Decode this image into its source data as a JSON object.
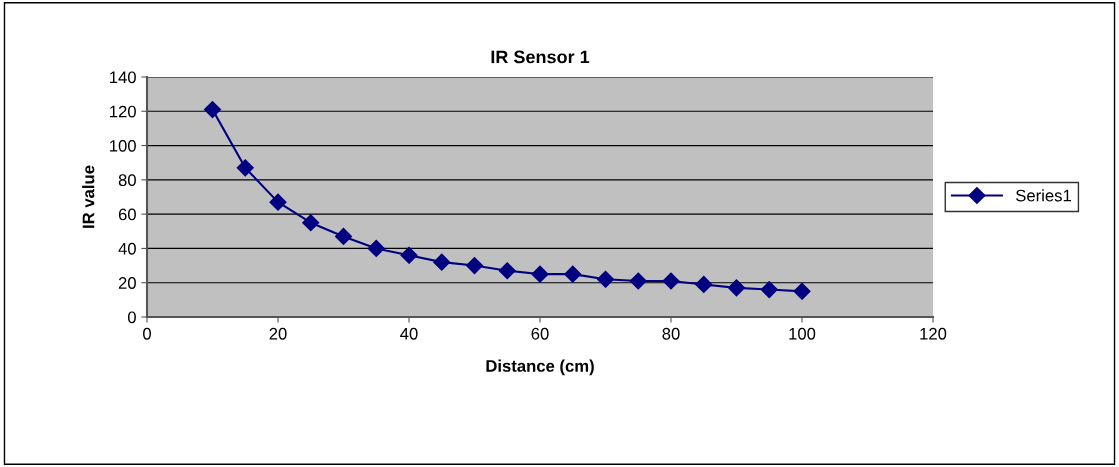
{
  "chart_data": {
    "type": "line",
    "title": "IR Sensor 1",
    "xlabel": "Distance (cm)",
    "ylabel": "IR value",
    "x": [
      10,
      15,
      20,
      25,
      30,
      35,
      40,
      45,
      50,
      55,
      60,
      65,
      70,
      75,
      80,
      85,
      90,
      95,
      100
    ],
    "series": [
      {
        "name": "Series1",
        "color": "#000080",
        "values": [
          121,
          87,
          67,
          55,
          47,
          40,
          36,
          32,
          30,
          27,
          25,
          25,
          22,
          21,
          21,
          19,
          17,
          16,
          15
        ]
      }
    ],
    "xlim": [
      0,
      120
    ],
    "xticks": [
      0,
      20,
      40,
      60,
      80,
      100,
      120
    ],
    "ylim": [
      0,
      140
    ],
    "yticks": [
      0,
      20,
      40,
      60,
      80,
      100,
      120,
      140
    ],
    "grid": "y",
    "legend": "right",
    "marker": "diamond",
    "line_style": "solid"
  }
}
